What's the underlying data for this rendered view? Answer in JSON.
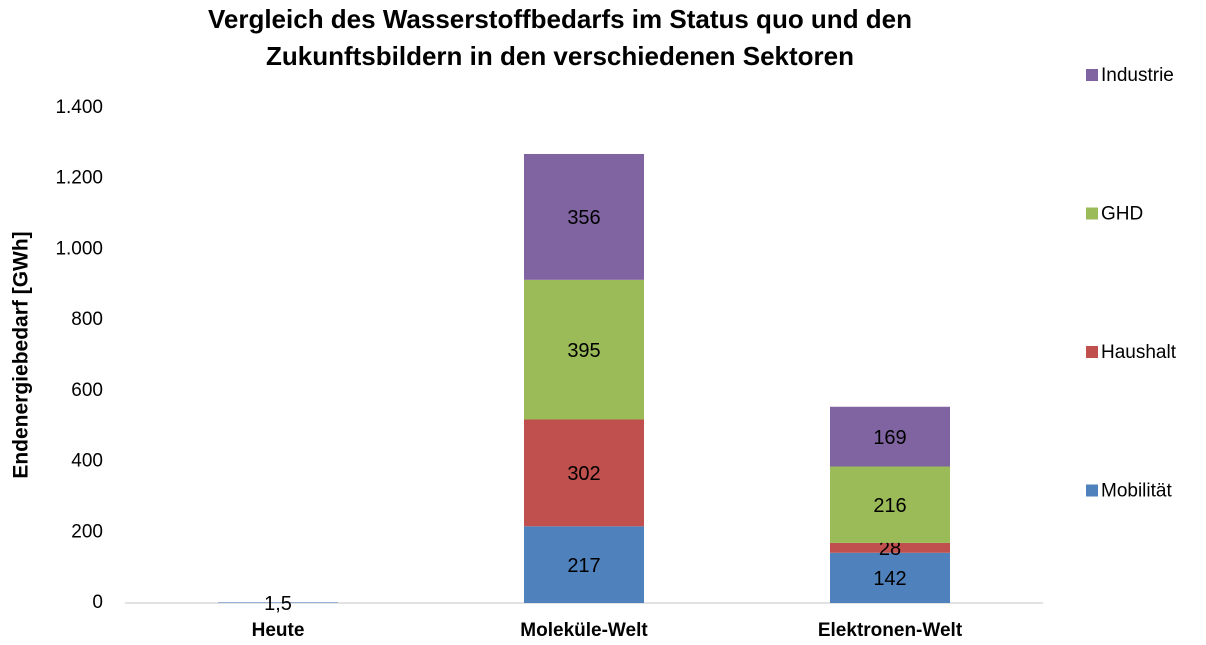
{
  "chart_data": {
    "type": "stacked_bar",
    "title": [
      "Vergleich des Wasserstoffbedarfs im Status quo und den",
      "Zukunftsbildern in den verschiedenen Sektoren"
    ],
    "y_label": "Endenergiebedarf [GWh]",
    "categories": [
      "Heute",
      "Moleküle-Welt",
      "Elektronen-Welt"
    ],
    "series": [
      {
        "name": "Mobilität",
        "color": "#4f81bd",
        "values": [
          1.5,
          217,
          142
        ],
        "value_labels": [
          "1,5",
          "217",
          "142"
        ]
      },
      {
        "name": "Haushalt",
        "color": "#c0504d",
        "values": [
          null,
          302,
          28
        ]
      },
      {
        "name": "GHD",
        "color": "#9bbb59",
        "values": [
          null,
          395,
          216
        ]
      },
      {
        "name": "Industrie",
        "color": "#8064a2",
        "values": [
          null,
          356,
          169
        ]
      }
    ],
    "ylim": [
      0,
      1400
    ],
    "yticks": [
      0,
      200,
      400,
      600,
      800,
      {
        "value": 1000,
        "label": "1.000"
      },
      {
        "value": 1200,
        "label": "1.200"
      },
      {
        "value": 1400,
        "label": "1.400"
      }
    ],
    "grid": false,
    "legend": "right"
  }
}
